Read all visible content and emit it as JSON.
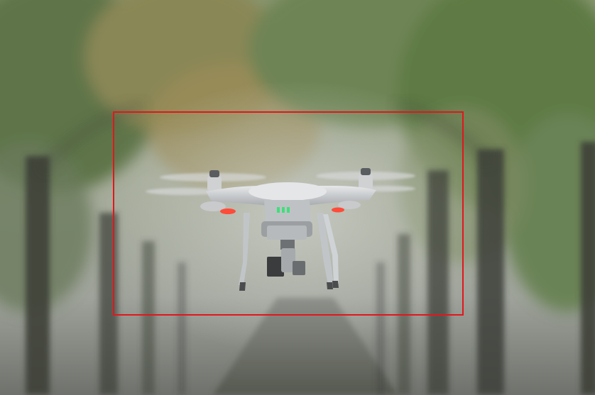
{
  "image": {
    "subject": "drone",
    "colors": {
      "fog": "#b7bcb2",
      "foliage": "#6e8455",
      "foliage_autumn": "#9a8a55",
      "trunk": "#3d4039",
      "road": "#5e625c",
      "drone_body": "#d4d6d8",
      "drone_shadow": "#8d9093",
      "camera": "#3a3c3e",
      "status_led": "#3ee07a",
      "motor_led": "#ff4b3a"
    }
  },
  "annotation": {
    "label": "",
    "box_color": "#e3161c"
  }
}
